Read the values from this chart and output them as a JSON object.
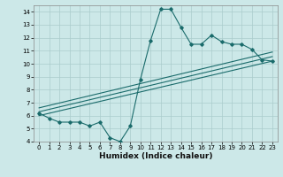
{
  "xlabel": "Humidex (Indice chaleur)",
  "ylabel": "",
  "bg_color": "#cce8e8",
  "grid_color": "#aacccc",
  "line_color": "#1a6b6b",
  "xlim": [
    -0.5,
    23.5
  ],
  "ylim": [
    4,
    14.5
  ],
  "xticks": [
    0,
    1,
    2,
    3,
    4,
    5,
    6,
    7,
    8,
    9,
    10,
    11,
    12,
    13,
    14,
    15,
    16,
    17,
    18,
    19,
    20,
    21,
    22,
    23
  ],
  "yticks": [
    4,
    5,
    6,
    7,
    8,
    9,
    10,
    11,
    12,
    13,
    14
  ],
  "main_x": [
    0,
    1,
    2,
    3,
    4,
    5,
    6,
    7,
    8,
    9,
    10,
    11,
    12,
    13,
    14,
    15,
    16,
    17,
    18,
    19,
    20,
    21,
    22,
    23
  ],
  "main_y": [
    6.2,
    5.8,
    5.5,
    5.5,
    5.5,
    5.2,
    5.5,
    4.3,
    4.0,
    5.2,
    8.8,
    11.8,
    14.2,
    14.2,
    12.8,
    11.5,
    11.5,
    12.2,
    11.7,
    11.5,
    11.5,
    11.1,
    10.3,
    10.2
  ],
  "line1_x": [
    0,
    23
  ],
  "line1_y": [
    6.0,
    10.2
  ],
  "line2_x": [
    0,
    23
  ],
  "line2_y": [
    6.3,
    10.55
  ],
  "line3_x": [
    0,
    23
  ],
  "line3_y": [
    6.6,
    10.9
  ]
}
